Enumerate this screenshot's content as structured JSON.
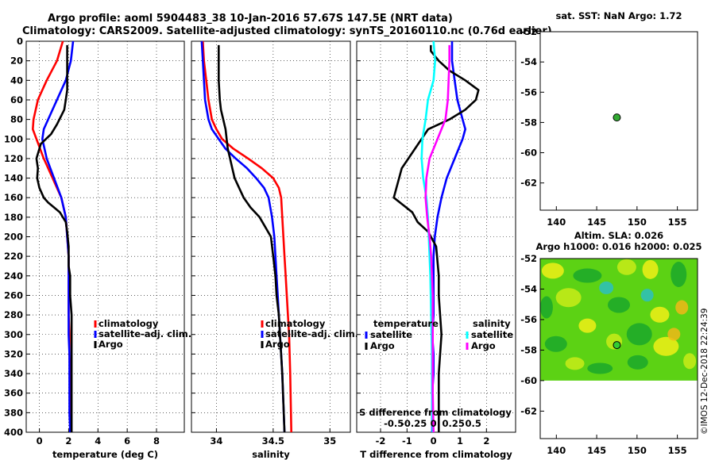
{
  "header": {
    "line1": "Argo profile: aoml 5904483_38 10-Jan-2016 57.67S 147.5E (NRT data)",
    "line2": "Climatology: CARS2009. Satellite-adjusted climatology: synTS_20160110.nc (0.76d earlier)"
  },
  "colors": {
    "climatology": "#ff0000",
    "satellite": "#0000ff",
    "argo": "#000000",
    "sal_satellite": "#00ffff",
    "sal_argo": "#ff00ff"
  },
  "chart_data": [
    {
      "type": "line",
      "title": "",
      "xlabel": "temperature (deg C)",
      "ylabel": "depth",
      "xlim": [
        -0.9,
        9.9
      ],
      "ylim": [
        400,
        0
      ],
      "xticks": [
        0,
        2,
        4,
        6,
        8
      ],
      "xticklabels": [
        "0",
        "2",
        "4",
        "6",
        "8"
      ],
      "yticks": [
        0,
        20,
        40,
        60,
        80,
        100,
        120,
        140,
        160,
        180,
        200,
        220,
        240,
        260,
        280,
        300,
        320,
        340,
        360,
        380,
        400
      ],
      "yticklabels": [
        "0",
        "20",
        "40",
        "60",
        "80",
        "100",
        "120",
        "140",
        "160",
        "180",
        "200",
        "220",
        "240",
        "260",
        "280",
        "300",
        "320",
        "340",
        "360",
        "380",
        "400"
      ],
      "legend": [
        "climatology",
        "satellite-adj. clim.",
        "Argo"
      ],
      "series": [
        {
          "name": "climatology",
          "color": "#ff0000",
          "x": [
            1.6,
            1.2,
            0.5,
            -0.1,
            -0.4,
            -0.45,
            -0.2,
            0.3,
            0.9,
            1.5,
            1.8,
            1.9,
            2.0,
            2.0,
            2.0,
            2.0,
            2.05,
            2.05,
            2.1,
            2.1,
            2.1,
            2.1
          ],
          "y": [
            0,
            20,
            40,
            60,
            80,
            90,
            100,
            120,
            140,
            160,
            180,
            200,
            220,
            240,
            260,
            280,
            300,
            320,
            340,
            360,
            380,
            400
          ]
        },
        {
          "name": "satellite-adj. clim.",
          "color": "#0000ff",
          "x": [
            2.3,
            2.15,
            1.8,
            1.2,
            0.6,
            0.3,
            0.2,
            0.5,
            1.0,
            1.5,
            1.8,
            1.9,
            2.0,
            2.0,
            2.0,
            2.0,
            2.0,
            2.05,
            2.05,
            2.05,
            2.05,
            2.1
          ],
          "y": [
            0,
            20,
            40,
            60,
            80,
            90,
            100,
            120,
            140,
            160,
            180,
            200,
            220,
            240,
            260,
            280,
            300,
            320,
            340,
            360,
            380,
            400
          ]
        },
        {
          "name": "Argo",
          "color": "#000000",
          "x": [
            1.9,
            1.9,
            1.9,
            1.9,
            1.8,
            1.7,
            1.2,
            0.8,
            0.1,
            -0.2,
            -0.1,
            -0.15,
            0.0,
            0.3,
            0.6,
            1.0,
            1.4,
            1.8,
            1.9,
            2.0,
            2.0,
            2.1,
            2.1,
            2.2,
            2.2,
            2.2,
            2.2,
            2.2,
            2.2,
            2.2,
            2.2,
            2.2,
            2.2
          ],
          "y": [
            4,
            20,
            40,
            50,
            60,
            70,
            85,
            95,
            105,
            120,
            130,
            140,
            150,
            160,
            165,
            170,
            175,
            185,
            195,
            210,
            230,
            240,
            260,
            280,
            300,
            320,
            340,
            355,
            365,
            375,
            385,
            395,
            400
          ]
        }
      ]
    },
    {
      "type": "line",
      "title": "",
      "xlabel": "salinity",
      "ylabel": "depth",
      "xlim": [
        33.78,
        35.18
      ],
      "ylim": [
        400,
        0
      ],
      "xticks": [
        34.0,
        34.5,
        35.0
      ],
      "xticklabels": [
        "34",
        "34.5",
        "35"
      ],
      "yticks": [
        0,
        20,
        40,
        60,
        80,
        100,
        120,
        140,
        160,
        180,
        200,
        220,
        240,
        260,
        280,
        300,
        320,
        340,
        360,
        380,
        400
      ],
      "legend": [
        "climatology",
        "satellite-adj. clim.",
        "Argo"
      ],
      "series": [
        {
          "name": "climatology",
          "color": "#ff0000",
          "x": [
            33.88,
            33.89,
            33.91,
            33.93,
            33.96,
            34.0,
            34.05,
            34.15,
            34.28,
            34.4,
            34.5,
            34.55,
            34.57,
            34.58,
            34.59,
            34.6,
            34.61,
            34.62,
            34.63,
            34.64,
            34.645,
            34.65,
            34.66
          ],
          "y": [
            0,
            20,
            40,
            60,
            80,
            90,
            100,
            110,
            120,
            130,
            140,
            150,
            160,
            180,
            200,
            220,
            240,
            260,
            280,
            300,
            320,
            340,
            400
          ]
        },
        {
          "name": "satellite-adj. clim.",
          "color": "#0000ff",
          "x": [
            33.87,
            33.88,
            33.89,
            33.9,
            33.93,
            33.96,
            34.02,
            34.08,
            34.17,
            34.27,
            34.35,
            34.42,
            34.46,
            34.49,
            34.51,
            34.52,
            34.53,
            34.54,
            34.55,
            34.56,
            34.57,
            34.58,
            34.6
          ],
          "y": [
            0,
            20,
            40,
            60,
            80,
            90,
            100,
            110,
            120,
            130,
            140,
            150,
            160,
            180,
            200,
            220,
            240,
            260,
            280,
            300,
            320,
            340,
            400
          ]
        },
        {
          "name": "Argo",
          "color": "#000000",
          "x": [
            34.02,
            34.02,
            34.02,
            34.03,
            34.04,
            34.06,
            34.08,
            34.09,
            34.1,
            34.12,
            34.14,
            34.16,
            34.2,
            34.24,
            34.3,
            34.38,
            34.43,
            34.48,
            34.5,
            34.52,
            34.53,
            34.55,
            34.56,
            34.58,
            34.6
          ],
          "y": [
            4,
            20,
            40,
            60,
            70,
            80,
            90,
            100,
            110,
            120,
            130,
            140,
            150,
            160,
            170,
            180,
            190,
            200,
            220,
            240,
            260,
            280,
            300,
            340,
            400
          ]
        }
      ]
    },
    {
      "type": "line",
      "title": "",
      "xlabel": "T difference from climatology",
      "ylabel": "depth",
      "xlim": [
        -2.9,
        3.1
      ],
      "ylim": [
        400,
        0
      ],
      "xticks": [
        -2,
        -1,
        0,
        1,
        2
      ],
      "xticklabels": [
        "-2",
        "-1",
        "0",
        "1",
        "2"
      ],
      "top_axis_label": "S difference from climatology",
      "top_xticks": [
        -0.5,
        -0.25,
        0,
        0.25,
        0.5
      ],
      "top_xticklabels": [
        "-0.5",
        "-0.25",
        "0",
        "0.25",
        "0.5"
      ],
      "yticks": [
        0,
        20,
        40,
        60,
        80,
        100,
        120,
        140,
        160,
        180,
        200,
        220,
        240,
        260,
        280,
        300,
        320,
        340,
        360,
        380,
        400
      ],
      "legend_left_title": "temperature",
      "legend_right_title": "salinity",
      "legend_left": [
        "satellite",
        "Argo"
      ],
      "legend_right": [
        "satellite",
        "Argo"
      ],
      "series": [
        {
          "name": "temperature satellite",
          "color": "#0000ff",
          "x": [
            0.7,
            0.7,
            0.8,
            0.9,
            1.1,
            1.2,
            1.1,
            0.8,
            0.5,
            0.3,
            0.15,
            0.05,
            0.0,
            0.0,
            0.0,
            0.0,
            -0.05,
            0.0,
            0.0,
            -0.05,
            -0.05
          ],
          "y": [
            0,
            20,
            40,
            60,
            80,
            90,
            100,
            120,
            140,
            160,
            180,
            200,
            220,
            240,
            260,
            280,
            300,
            320,
            340,
            360,
            400
          ]
        },
        {
          "name": "temperature Argo",
          "color": "#000000",
          "x": [
            -0.1,
            -0.1,
            0.2,
            0.6,
            1.2,
            1.7,
            1.6,
            1.2,
            0.6,
            -0.2,
            -1.2,
            -1.5,
            -0.8,
            -0.6,
            -0.2,
            0.1,
            0.2,
            0.2,
            0.25,
            0.3,
            0.25,
            0.2,
            0.2,
            0.2
          ],
          "y": [
            4,
            10,
            20,
            30,
            40,
            50,
            60,
            70,
            80,
            90,
            130,
            160,
            175,
            185,
            195,
            210,
            240,
            260,
            280,
            300,
            320,
            340,
            380,
            400
          ]
        },
        {
          "name": "salinity satellite",
          "color": "#00ffff",
          "x": [
            0.0,
            0.02,
            0.0,
            -0.07,
            -0.1,
            -0.14,
            -0.15,
            -0.13,
            -0.09,
            -0.07,
            -0.06,
            -0.05,
            -0.04,
            -0.03,
            -0.02,
            -0.02,
            -0.01
          ],
          "y": [
            0,
            20,
            40,
            60,
            80,
            100,
            120,
            140,
            160,
            180,
            200,
            220,
            240,
            280,
            320,
            360,
            400
          ]
        },
        {
          "name": "salinity Argo",
          "color": "#ff00ff",
          "x": [
            0.2,
            0.2,
            0.19,
            0.18,
            0.15,
            0.1,
            0.05,
            -0.05,
            -0.09,
            -0.1,
            -0.08,
            -0.05,
            -0.03,
            -0.02,
            -0.01,
            -0.01,
            -0.01,
            0.0
          ],
          "y": [
            4,
            20,
            40,
            60,
            80,
            90,
            100,
            120,
            140,
            160,
            180,
            200,
            220,
            240,
            260,
            300,
            360,
            400
          ]
        }
      ]
    },
    {
      "type": "scatter",
      "title": "sat. SST: NaN Argo: 1.72",
      "xlabel": "",
      "ylabel": "",
      "xlim": [
        138,
        157.5
      ],
      "ylim": [
        -63.8,
        -52
      ],
      "xticks": [
        140,
        145,
        150,
        155
      ],
      "yticks": [
        -52,
        -54,
        -56,
        -58,
        -60,
        -62
      ],
      "points": [
        {
          "x": 147.5,
          "y": -57.67,
          "color": "#33aa33"
        }
      ]
    },
    {
      "type": "heatmap",
      "title": "Altim. SLA: 0.026",
      "subtitle": "Argo h1000: 0.016 h2000: 0.025",
      "xlabel": "",
      "ylabel": "",
      "xlim": [
        138,
        157.5
      ],
      "ylim": [
        -63.8,
        -52
      ],
      "data_extent_lat": [
        -60,
        -52
      ],
      "xticks": [
        140,
        145,
        150,
        155
      ],
      "yticks": [
        -52,
        -54,
        -56,
        -58,
        -60,
        -62
      ],
      "points": [
        {
          "x": 147.5,
          "y": -57.67,
          "color": "#33cc33"
        }
      ],
      "colors": [
        "#1aa82a",
        "#5cd214",
        "#c8ec18",
        "#f0f016",
        "#f0b818",
        "#2cc0c0"
      ]
    }
  ],
  "sidebar": {
    "credit": "©IMOS 12-Dec-2018 22:24:39"
  }
}
